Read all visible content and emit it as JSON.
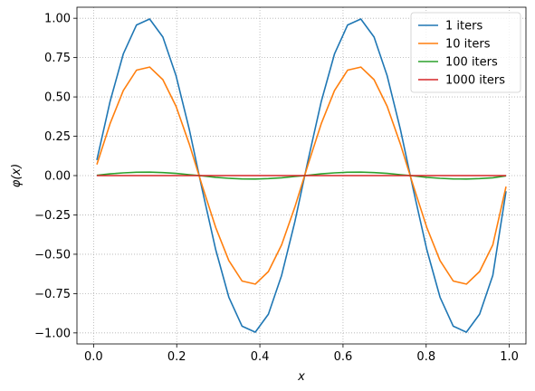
{
  "chart_data": {
    "type": "line",
    "title": "",
    "xlabel": "x",
    "ylabel": "φ(x)",
    "xlim": [
      -0.04,
      1.04
    ],
    "ylim": [
      -1.07,
      1.07
    ],
    "xticks": [
      0.0,
      0.2,
      0.4,
      0.6,
      0.8,
      1.0
    ],
    "xtick_labels": [
      "0.0",
      "0.2",
      "0.4",
      "0.6",
      "0.8",
      "1.0"
    ],
    "yticks": [
      1.0,
      0.75,
      0.5,
      0.25,
      0.0,
      -0.25,
      -0.5,
      -0.75,
      -1.0
    ],
    "ytick_labels": [
      "1.00",
      "0.75",
      "0.50",
      "0.25",
      "0.00",
      "−0.25",
      "−0.50",
      "−0.75",
      "−1.00"
    ],
    "grid": true,
    "legend_position": "top-right",
    "x": [
      0.0079,
      0.0397,
      0.0714,
      0.1032,
      0.1349,
      0.1667,
      0.1984,
      0.2302,
      0.2619,
      0.2937,
      0.3254,
      0.3571,
      0.3889,
      0.4206,
      0.4524,
      0.4841,
      0.5159,
      0.5476,
      0.5794,
      0.6111,
      0.6429,
      0.6746,
      0.7063,
      0.7381,
      0.7698,
      0.8016,
      0.8333,
      0.8651,
      0.8968,
      0.9286,
      0.9603,
      0.9921
    ],
    "series": [
      {
        "name": "1 iters",
        "color": "#1f77b4",
        "values": [
          0.099,
          0.471,
          0.773,
          0.957,
          0.995,
          0.881,
          0.634,
          0.294,
          -0.098,
          -0.471,
          -0.773,
          -0.957,
          -0.995,
          -0.881,
          -0.634,
          -0.294,
          0.098,
          0.471,
          0.773,
          0.957,
          0.995,
          0.881,
          0.634,
          0.294,
          -0.098,
          -0.471,
          -0.773,
          -0.957,
          -0.995,
          -0.881,
          -0.634,
          -0.099
        ]
      },
      {
        "name": "10 iters",
        "color": "#ff7f0e",
        "values": [
          0.07,
          0.33,
          0.54,
          0.67,
          0.69,
          0.61,
          0.44,
          0.2,
          -0.07,
          -0.33,
          -0.54,
          -0.67,
          -0.69,
          -0.61,
          -0.44,
          -0.2,
          0.07,
          0.33,
          0.54,
          0.67,
          0.69,
          0.61,
          0.44,
          0.2,
          -0.07,
          -0.33,
          -0.54,
          -0.67,
          -0.69,
          -0.61,
          -0.44,
          -0.07
        ]
      },
      {
        "name": "100 iters",
        "color": "#2ca02c",
        "values": [
          0.002,
          0.011,
          0.017,
          0.021,
          0.022,
          0.019,
          0.014,
          0.006,
          -0.002,
          -0.011,
          -0.017,
          -0.021,
          -0.022,
          -0.019,
          -0.014,
          -0.006,
          0.002,
          0.011,
          0.017,
          0.021,
          0.022,
          0.019,
          0.014,
          0.006,
          -0.002,
          -0.011,
          -0.017,
          -0.021,
          -0.022,
          -0.019,
          -0.014,
          -0.002
        ]
      },
      {
        "name": "1000 iters",
        "color": "#d62728",
        "values": [
          0,
          0,
          0,
          0,
          0,
          0,
          0,
          0,
          0,
          0,
          0,
          0,
          0,
          0,
          0,
          0,
          0,
          0,
          0,
          0,
          0,
          0,
          0,
          0,
          0,
          0,
          0,
          0,
          0,
          0,
          0,
          0
        ]
      }
    ]
  }
}
